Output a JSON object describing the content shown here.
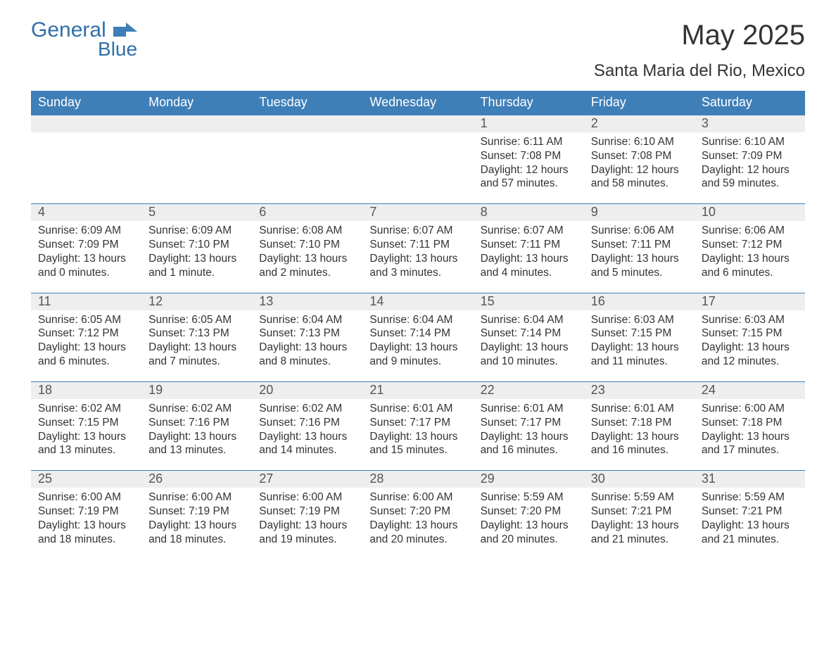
{
  "brand": {
    "word1": "General",
    "word2": "Blue",
    "text_color": "#2f6fa9",
    "flag_color": "#3f7fb8"
  },
  "title": "May 2025",
  "location": "Santa Maria del Rio, Mexico",
  "colors": {
    "header_bg": "#3f7fb8",
    "header_text": "#ffffff",
    "daynum_bg": "#eeeeee",
    "daynum_text": "#555555",
    "body_text": "#333333",
    "rule": "#3f7fb8",
    "page_bg": "#ffffff"
  },
  "days_of_week": [
    "Sunday",
    "Monday",
    "Tuesday",
    "Wednesday",
    "Thursday",
    "Friday",
    "Saturday"
  ],
  "weeks": [
    [
      {
        "n": "",
        "sunrise": "",
        "sunset": "",
        "daylight1": "",
        "daylight2": ""
      },
      {
        "n": "",
        "sunrise": "",
        "sunset": "",
        "daylight1": "",
        "daylight2": ""
      },
      {
        "n": "",
        "sunrise": "",
        "sunset": "",
        "daylight1": "",
        "daylight2": ""
      },
      {
        "n": "",
        "sunrise": "",
        "sunset": "",
        "daylight1": "",
        "daylight2": ""
      },
      {
        "n": "1",
        "sunrise": "Sunrise: 6:11 AM",
        "sunset": "Sunset: 7:08 PM",
        "daylight1": "Daylight: 12 hours",
        "daylight2": "and 57 minutes."
      },
      {
        "n": "2",
        "sunrise": "Sunrise: 6:10 AM",
        "sunset": "Sunset: 7:08 PM",
        "daylight1": "Daylight: 12 hours",
        "daylight2": "and 58 minutes."
      },
      {
        "n": "3",
        "sunrise": "Sunrise: 6:10 AM",
        "sunset": "Sunset: 7:09 PM",
        "daylight1": "Daylight: 12 hours",
        "daylight2": "and 59 minutes."
      }
    ],
    [
      {
        "n": "4",
        "sunrise": "Sunrise: 6:09 AM",
        "sunset": "Sunset: 7:09 PM",
        "daylight1": "Daylight: 13 hours",
        "daylight2": "and 0 minutes."
      },
      {
        "n": "5",
        "sunrise": "Sunrise: 6:09 AM",
        "sunset": "Sunset: 7:10 PM",
        "daylight1": "Daylight: 13 hours",
        "daylight2": "and 1 minute."
      },
      {
        "n": "6",
        "sunrise": "Sunrise: 6:08 AM",
        "sunset": "Sunset: 7:10 PM",
        "daylight1": "Daylight: 13 hours",
        "daylight2": "and 2 minutes."
      },
      {
        "n": "7",
        "sunrise": "Sunrise: 6:07 AM",
        "sunset": "Sunset: 7:11 PM",
        "daylight1": "Daylight: 13 hours",
        "daylight2": "and 3 minutes."
      },
      {
        "n": "8",
        "sunrise": "Sunrise: 6:07 AM",
        "sunset": "Sunset: 7:11 PM",
        "daylight1": "Daylight: 13 hours",
        "daylight2": "and 4 minutes."
      },
      {
        "n": "9",
        "sunrise": "Sunrise: 6:06 AM",
        "sunset": "Sunset: 7:11 PM",
        "daylight1": "Daylight: 13 hours",
        "daylight2": "and 5 minutes."
      },
      {
        "n": "10",
        "sunrise": "Sunrise: 6:06 AM",
        "sunset": "Sunset: 7:12 PM",
        "daylight1": "Daylight: 13 hours",
        "daylight2": "and 6 minutes."
      }
    ],
    [
      {
        "n": "11",
        "sunrise": "Sunrise: 6:05 AM",
        "sunset": "Sunset: 7:12 PM",
        "daylight1": "Daylight: 13 hours",
        "daylight2": "and 6 minutes."
      },
      {
        "n": "12",
        "sunrise": "Sunrise: 6:05 AM",
        "sunset": "Sunset: 7:13 PM",
        "daylight1": "Daylight: 13 hours",
        "daylight2": "and 7 minutes."
      },
      {
        "n": "13",
        "sunrise": "Sunrise: 6:04 AM",
        "sunset": "Sunset: 7:13 PM",
        "daylight1": "Daylight: 13 hours",
        "daylight2": "and 8 minutes."
      },
      {
        "n": "14",
        "sunrise": "Sunrise: 6:04 AM",
        "sunset": "Sunset: 7:14 PM",
        "daylight1": "Daylight: 13 hours",
        "daylight2": "and 9 minutes."
      },
      {
        "n": "15",
        "sunrise": "Sunrise: 6:04 AM",
        "sunset": "Sunset: 7:14 PM",
        "daylight1": "Daylight: 13 hours",
        "daylight2": "and 10 minutes."
      },
      {
        "n": "16",
        "sunrise": "Sunrise: 6:03 AM",
        "sunset": "Sunset: 7:15 PM",
        "daylight1": "Daylight: 13 hours",
        "daylight2": "and 11 minutes."
      },
      {
        "n": "17",
        "sunrise": "Sunrise: 6:03 AM",
        "sunset": "Sunset: 7:15 PM",
        "daylight1": "Daylight: 13 hours",
        "daylight2": "and 12 minutes."
      }
    ],
    [
      {
        "n": "18",
        "sunrise": "Sunrise: 6:02 AM",
        "sunset": "Sunset: 7:15 PM",
        "daylight1": "Daylight: 13 hours",
        "daylight2": "and 13 minutes."
      },
      {
        "n": "19",
        "sunrise": "Sunrise: 6:02 AM",
        "sunset": "Sunset: 7:16 PM",
        "daylight1": "Daylight: 13 hours",
        "daylight2": "and 13 minutes."
      },
      {
        "n": "20",
        "sunrise": "Sunrise: 6:02 AM",
        "sunset": "Sunset: 7:16 PM",
        "daylight1": "Daylight: 13 hours",
        "daylight2": "and 14 minutes."
      },
      {
        "n": "21",
        "sunrise": "Sunrise: 6:01 AM",
        "sunset": "Sunset: 7:17 PM",
        "daylight1": "Daylight: 13 hours",
        "daylight2": "and 15 minutes."
      },
      {
        "n": "22",
        "sunrise": "Sunrise: 6:01 AM",
        "sunset": "Sunset: 7:17 PM",
        "daylight1": "Daylight: 13 hours",
        "daylight2": "and 16 minutes."
      },
      {
        "n": "23",
        "sunrise": "Sunrise: 6:01 AM",
        "sunset": "Sunset: 7:18 PM",
        "daylight1": "Daylight: 13 hours",
        "daylight2": "and 16 minutes."
      },
      {
        "n": "24",
        "sunrise": "Sunrise: 6:00 AM",
        "sunset": "Sunset: 7:18 PM",
        "daylight1": "Daylight: 13 hours",
        "daylight2": "and 17 minutes."
      }
    ],
    [
      {
        "n": "25",
        "sunrise": "Sunrise: 6:00 AM",
        "sunset": "Sunset: 7:19 PM",
        "daylight1": "Daylight: 13 hours",
        "daylight2": "and 18 minutes."
      },
      {
        "n": "26",
        "sunrise": "Sunrise: 6:00 AM",
        "sunset": "Sunset: 7:19 PM",
        "daylight1": "Daylight: 13 hours",
        "daylight2": "and 18 minutes."
      },
      {
        "n": "27",
        "sunrise": "Sunrise: 6:00 AM",
        "sunset": "Sunset: 7:19 PM",
        "daylight1": "Daylight: 13 hours",
        "daylight2": "and 19 minutes."
      },
      {
        "n": "28",
        "sunrise": "Sunrise: 6:00 AM",
        "sunset": "Sunset: 7:20 PM",
        "daylight1": "Daylight: 13 hours",
        "daylight2": "and 20 minutes."
      },
      {
        "n": "29",
        "sunrise": "Sunrise: 5:59 AM",
        "sunset": "Sunset: 7:20 PM",
        "daylight1": "Daylight: 13 hours",
        "daylight2": "and 20 minutes."
      },
      {
        "n": "30",
        "sunrise": "Sunrise: 5:59 AM",
        "sunset": "Sunset: 7:21 PM",
        "daylight1": "Daylight: 13 hours",
        "daylight2": "and 21 minutes."
      },
      {
        "n": "31",
        "sunrise": "Sunrise: 5:59 AM",
        "sunset": "Sunset: 7:21 PM",
        "daylight1": "Daylight: 13 hours",
        "daylight2": "and 21 minutes."
      }
    ]
  ]
}
